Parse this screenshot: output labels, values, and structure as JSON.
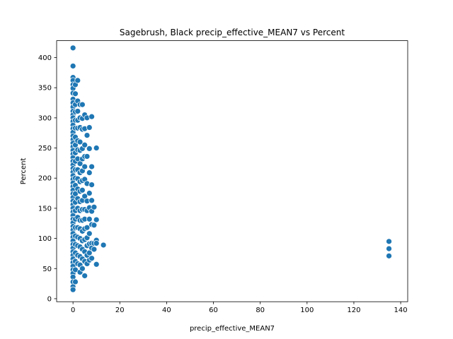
{
  "chart_data": {
    "type": "scatter",
    "title": "Sagebrush, Black precip_effective_MEAN7 vs Percent",
    "xlabel": "precip_effective_MEAN7",
    "ylabel": "Percent",
    "xlim": [
      -7,
      143
    ],
    "ylim": [
      -5,
      428
    ],
    "xticks": [
      0,
      20,
      40,
      60,
      80,
      100,
      120,
      140
    ],
    "yticks": [
      0,
      50,
      100,
      150,
      200,
      250,
      300,
      350,
      400
    ],
    "grid": false,
    "marker_color": "#1f77b4",
    "series": [
      {
        "points": [
          [
            0,
            416
          ],
          [
            0,
            386
          ],
          [
            0,
            367
          ],
          [
            0,
            362
          ],
          [
            0,
            355
          ],
          [
            0,
            349
          ],
          [
            0,
            341
          ],
          [
            0,
            331
          ],
          [
            0,
            325
          ],
          [
            0,
            318
          ],
          [
            0,
            311
          ],
          [
            0,
            305
          ],
          [
            0,
            300
          ],
          [
            0,
            294
          ],
          [
            0,
            288
          ],
          [
            0,
            282
          ],
          [
            0,
            276
          ],
          [
            0,
            270
          ],
          [
            0,
            264
          ],
          [
            0,
            258
          ],
          [
            0,
            252
          ],
          [
            0,
            246
          ],
          [
            0,
            240
          ],
          [
            0,
            234
          ],
          [
            0,
            228
          ],
          [
            0,
            222
          ],
          [
            0,
            216
          ],
          [
            0,
            210
          ],
          [
            0,
            204
          ],
          [
            0,
            198
          ],
          [
            0,
            192
          ],
          [
            0,
            186
          ],
          [
            0,
            180
          ],
          [
            0,
            174
          ],
          [
            0,
            168
          ],
          [
            0,
            162
          ],
          [
            0,
            156
          ],
          [
            0,
            150
          ],
          [
            0,
            144
          ],
          [
            0,
            138
          ],
          [
            0,
            132
          ],
          [
            0,
            126
          ],
          [
            0,
            120
          ],
          [
            0,
            114
          ],
          [
            0,
            108
          ],
          [
            0,
            102
          ],
          [
            0,
            96
          ],
          [
            0,
            90
          ],
          [
            0,
            84
          ],
          [
            0,
            78
          ],
          [
            0,
            72
          ],
          [
            0,
            66
          ],
          [
            0,
            60
          ],
          [
            0,
            54
          ],
          [
            0,
            48
          ],
          [
            0,
            42
          ],
          [
            0,
            36
          ],
          [
            0,
            28
          ],
          [
            0,
            20
          ],
          [
            0,
            15
          ],
          [
            1,
            355
          ],
          [
            1,
            340
          ],
          [
            1,
            322
          ],
          [
            1,
            310
          ],
          [
            1,
            296
          ],
          [
            1,
            283
          ],
          [
            1,
            268
          ],
          [
            1,
            255
          ],
          [
            1,
            242
          ],
          [
            1,
            228
          ],
          [
            1,
            214
          ],
          [
            1,
            200
          ],
          [
            1,
            188
          ],
          [
            1,
            174
          ],
          [
            1,
            160
          ],
          [
            1,
            146
          ],
          [
            1,
            132
          ],
          [
            1,
            118
          ],
          [
            1,
            104
          ],
          [
            1,
            90
          ],
          [
            1,
            76
          ],
          [
            1,
            62
          ],
          [
            1,
            48
          ],
          [
            1,
            28
          ],
          [
            2,
            362
          ],
          [
            2,
            328
          ],
          [
            2,
            311
          ],
          [
            2,
            296
          ],
          [
            2,
            283
          ],
          [
            2,
            262
          ],
          [
            2,
            247
          ],
          [
            2,
            232
          ],
          [
            2,
            214
          ],
          [
            2,
            199
          ],
          [
            2,
            182
          ],
          [
            2,
            166
          ],
          [
            2,
            150
          ],
          [
            2,
            135
          ],
          [
            2,
            118
          ],
          [
            2,
            102
          ],
          [
            2,
            88
          ],
          [
            2,
            72
          ],
          [
            2,
            58
          ],
          [
            3,
            322
          ],
          [
            3,
            300
          ],
          [
            3,
            284
          ],
          [
            3,
            260
          ],
          [
            3,
            246
          ],
          [
            3,
            224
          ],
          [
            3,
            209
          ],
          [
            3,
            194
          ],
          [
            3,
            178
          ],
          [
            3,
            161
          ],
          [
            3,
            146
          ],
          [
            3,
            130
          ],
          [
            3,
            116
          ],
          [
            3,
            100
          ],
          [
            3,
            86
          ],
          [
            3,
            70
          ],
          [
            3,
            56
          ],
          [
            3,
            44
          ],
          [
            4,
            322
          ],
          [
            4,
            299
          ],
          [
            4,
            281
          ],
          [
            4,
            249
          ],
          [
            4,
            232
          ],
          [
            4,
            212
          ],
          [
            4,
            196
          ],
          [
            4,
            180
          ],
          [
            4,
            163
          ],
          [
            4,
            148
          ],
          [
            4,
            130
          ],
          [
            4,
            112
          ],
          [
            4,
            96
          ],
          [
            4,
            82
          ],
          [
            4,
            66
          ],
          [
            4,
            50
          ],
          [
            5,
            305
          ],
          [
            5,
            282
          ],
          [
            5,
            255
          ],
          [
            5,
            236
          ],
          [
            5,
            219
          ],
          [
            5,
            198
          ],
          [
            5,
            170
          ],
          [
            5,
            148
          ],
          [
            5,
            132
          ],
          [
            5,
            116
          ],
          [
            5,
            98
          ],
          [
            5,
            78
          ],
          [
            5,
            62
          ],
          [
            5,
            38
          ],
          [
            6,
            300
          ],
          [
            6,
            271
          ],
          [
            6,
            236
          ],
          [
            6,
            191
          ],
          [
            6,
            162
          ],
          [
            6,
            146
          ],
          [
            6,
            118
          ],
          [
            6,
            101
          ],
          [
            6,
            88
          ],
          [
            6,
            72
          ],
          [
            6,
            58
          ],
          [
            7,
            284
          ],
          [
            7,
            249
          ],
          [
            7,
            209
          ],
          [
            7,
            175
          ],
          [
            7,
            151
          ],
          [
            7,
            132
          ],
          [
            7,
            108
          ],
          [
            7,
            91
          ],
          [
            7,
            76
          ],
          [
            7,
            64
          ],
          [
            8,
            302
          ],
          [
            8,
            219
          ],
          [
            8,
            189
          ],
          [
            8,
            163
          ],
          [
            8,
            145
          ],
          [
            8,
            123
          ],
          [
            8,
            92
          ],
          [
            8,
            84
          ],
          [
            8,
            67
          ],
          [
            9,
            152
          ],
          [
            9,
            122
          ],
          [
            9,
            92
          ],
          [
            9,
            82
          ],
          [
            10,
            250
          ],
          [
            10,
            131
          ],
          [
            10,
            97
          ],
          [
            10,
            92
          ],
          [
            10,
            57
          ],
          [
            13,
            89
          ],
          [
            135,
            95
          ],
          [
            135,
            83
          ],
          [
            135,
            71
          ]
        ]
      }
    ]
  }
}
